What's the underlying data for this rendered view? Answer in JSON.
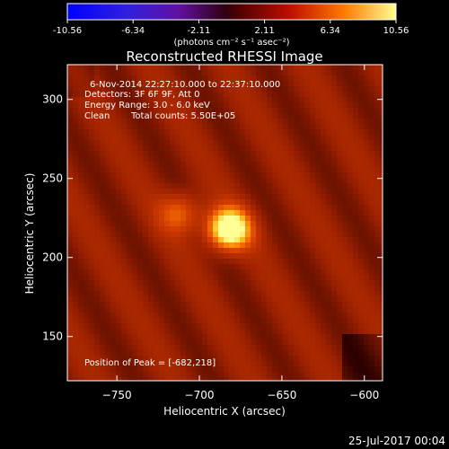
{
  "chart_data": {
    "type": "heatmap",
    "title": "Reconstructed RHESSI Image",
    "xlabel": "Heliocentric X (arcsec)",
    "ylabel": "Heliocentric Y (arcsec)",
    "xlim": [
      -780,
      -589
    ],
    "ylim": [
      122,
      322
    ],
    "x_ticks": [
      -750,
      -700,
      -650,
      -600
    ],
    "y_ticks": [
      150,
      200,
      250,
      300
    ],
    "colorbar": {
      "ticks": [
        "-10.56",
        "-6.34",
        "-2.11",
        "2.11",
        "6.34",
        "10.56"
      ],
      "units": "(photons cm⁻² s⁻¹ asec⁻²)",
      "range": [
        -10.56,
        10.56
      ]
    },
    "annotations": {
      "time_range": "6-Nov-2014 22:27:10.000 to 22:37:10.000",
      "detectors": "Detectors: 3F 6F 9F, Att 0",
      "energy": "Energy Range: 3.0 - 6.0 keV",
      "method": "Clean",
      "total_counts": "Total counts: 5.50E+05",
      "peak_position": "Position of Peak = [-682,218]"
    },
    "sources": [
      {
        "x": -682,
        "y": 218,
        "peak": 10.5
      },
      {
        "x": -712,
        "y": 228,
        "peak": 4.0
      }
    ],
    "background_level": 2.6,
    "grid": false
  },
  "footer": {
    "date": "25-Jul-2017 00:04"
  },
  "colors": {
    "background": "#000000",
    "text": "#ffffff"
  }
}
